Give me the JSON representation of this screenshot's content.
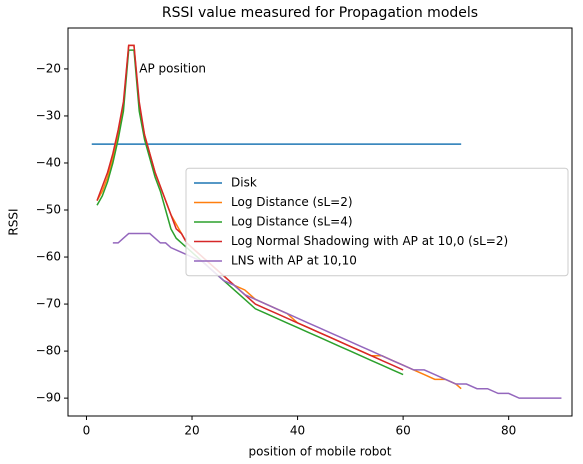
{
  "chart_data": {
    "type": "line",
    "title": "RSSI value measured for Propagation models",
    "xlabel": "position of mobile robot",
    "ylabel": "RSSI",
    "xlim": [
      -3.5,
      92
    ],
    "ylim": [
      -93.8,
      -11.3
    ],
    "xticks": [
      0,
      20,
      40,
      60,
      80
    ],
    "yticks": [
      {
        "value": -20,
        "label": "−20"
      },
      {
        "value": -30,
        "label": "−30"
      },
      {
        "value": -40,
        "label": "−40"
      },
      {
        "value": -50,
        "label": "−50"
      },
      {
        "value": -60,
        "label": "−60"
      },
      {
        "value": -70,
        "label": "−70"
      },
      {
        "value": -80,
        "label": "−80"
      },
      {
        "value": -90,
        "label": "−90"
      }
    ],
    "grid": false,
    "legend": "center right",
    "annotations": [
      {
        "text": "AP position",
        "x": 10,
        "y": -20
      }
    ],
    "series": [
      {
        "name": "Disk",
        "color": "#1f77b4",
        "x": [
          1,
          71
        ],
        "values": [
          -36,
          -36
        ]
      },
      {
        "name": "Log Distance (sL=2)",
        "color": "#ff7f0e",
        "x": [
          2,
          3,
          4,
          5,
          6,
          7,
          8,
          9,
          10,
          11,
          12,
          13,
          14,
          15,
          16,
          17,
          18,
          19,
          20,
          22,
          24,
          26,
          28,
          30,
          32,
          34,
          36,
          38,
          40,
          42,
          44,
          46,
          48,
          50,
          52,
          54,
          56,
          58,
          60,
          62,
          64,
          66,
          68,
          70,
          71
        ],
        "values": [
          -48,
          -46,
          -43,
          -39,
          -34,
          -28,
          -15,
          -15,
          -28,
          -34,
          -38,
          -42,
          -45,
          -48,
          -51,
          -53,
          -55,
          -57,
          -58,
          -60,
          -62,
          -64,
          -66,
          -67,
          -69,
          -70,
          -71,
          -72,
          -74,
          -75,
          -76,
          -77,
          -78,
          -79,
          -80,
          -81,
          -81,
          -82,
          -83,
          -84,
          -85,
          -86,
          -86,
          -87,
          -88
        ]
      },
      {
        "name": "Log Distance (sL=4)",
        "color": "#2ca02c",
        "x": [
          2,
          3,
          4,
          5,
          6,
          7,
          8,
          9,
          10,
          11,
          12,
          13,
          14,
          15,
          16,
          17,
          18,
          19,
          20,
          22,
          24,
          26,
          28,
          30,
          32,
          34,
          36,
          38,
          40,
          42,
          44,
          46,
          48,
          50,
          52,
          54,
          56,
          58,
          60
        ],
        "values": [
          -49,
          -47,
          -44,
          -40,
          -35,
          -29,
          -16,
          -16,
          -29,
          -35,
          -39,
          -43,
          -46,
          -50,
          -54,
          -56,
          -57,
          -58,
          -59,
          -61,
          -63,
          -65,
          -67,
          -69,
          -71,
          -72,
          -73,
          -74,
          -75,
          -76,
          -77,
          -78,
          -79,
          -80,
          -81,
          -82,
          -83,
          -84,
          -85
        ]
      },
      {
        "name": "Log Normal Shadowing with AP at 10,0 (sL=2)",
        "color": "#d62728",
        "x": [
          2,
          3,
          4,
          5,
          6,
          7,
          8,
          9,
          10,
          11,
          12,
          13,
          14,
          15,
          16,
          17,
          18,
          19,
          20,
          22,
          24,
          26,
          28,
          30,
          32,
          34,
          36,
          38,
          40,
          42,
          44,
          46,
          48,
          50,
          52,
          54,
          56,
          58,
          60
        ],
        "values": [
          -48,
          -45,
          -42,
          -38,
          -33,
          -27,
          -15,
          -15,
          -27,
          -34,
          -38,
          -42,
          -45,
          -48,
          -51,
          -54,
          -55,
          -57,
          -58,
          -60,
          -62,
          -64,
          -66,
          -68,
          -70,
          -71,
          -72,
          -73,
          -74,
          -75,
          -76,
          -77,
          -78,
          -79,
          -80,
          -81,
          -82,
          -83,
          -84
        ]
      },
      {
        "name": "LNS with AP at 10,10",
        "color": "#9467bd",
        "x": [
          5,
          6,
          7,
          8,
          12,
          13,
          14,
          15,
          16,
          18,
          20,
          22,
          24,
          26,
          28,
          30,
          32,
          34,
          36,
          38,
          40,
          42,
          44,
          46,
          48,
          50,
          52,
          54,
          56,
          58,
          60,
          62,
          64,
          66,
          68,
          70,
          72,
          74,
          76,
          78,
          80,
          82,
          84,
          90
        ],
        "values": [
          -57,
          -57,
          -56,
          -55,
          -55,
          -56,
          -57,
          -57,
          -58,
          -59,
          -60,
          -61,
          -63,
          -65,
          -66,
          -68,
          -69,
          -70,
          -71,
          -72,
          -73,
          -74,
          -75,
          -76,
          -77,
          -78,
          -79,
          -80,
          -81,
          -82,
          -83,
          -84,
          -84,
          -85,
          -86,
          -87,
          -87,
          -88,
          -88,
          -89,
          -89,
          -90,
          -90,
          -90
        ]
      }
    ]
  }
}
